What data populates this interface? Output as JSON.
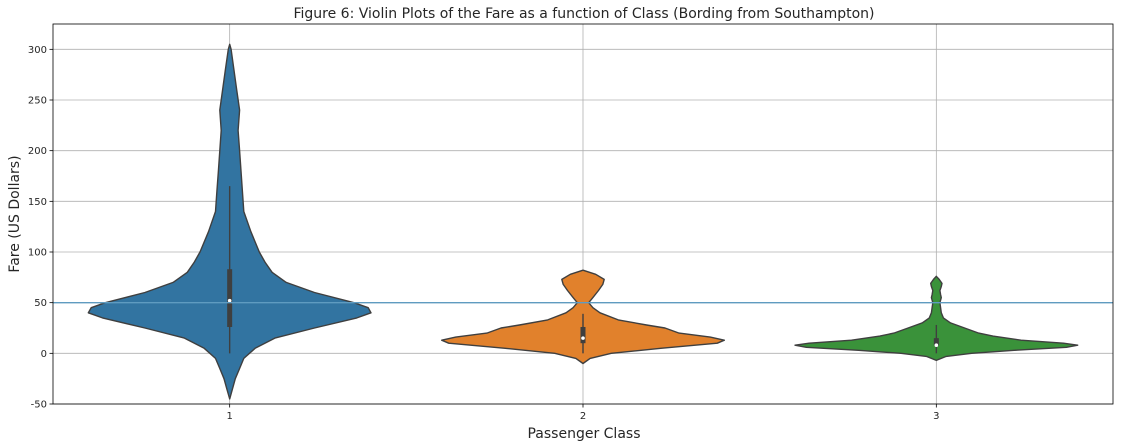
{
  "chart_data": {
    "type": "violin",
    "title": "Figure 6:  Violin Plots of the Fare as a function of Class (Bording from Southampton)",
    "xlabel": "Passenger Class",
    "ylabel": "Fare (US Dollars)",
    "ylim": [
      -50,
      325
    ],
    "yticks": [
      -50,
      0,
      50,
      100,
      150,
      200,
      250,
      300
    ],
    "grid": true,
    "reference_line": {
      "y": 50,
      "color": "#5f9bc0"
    },
    "categories": [
      "1",
      "2",
      "3"
    ],
    "violins": [
      {
        "category": "1",
        "color": "#3274a1",
        "median": 52,
        "q1": 26,
        "q3": 83,
        "whisker_low": 0,
        "whisker_high": 165,
        "profile": [
          [
            -45,
            0.0
          ],
          [
            -35,
            0.02
          ],
          [
            -25,
            0.04
          ],
          [
            -15,
            0.07
          ],
          [
            -5,
            0.1
          ],
          [
            5,
            0.18
          ],
          [
            15,
            0.32
          ],
          [
            25,
            0.6
          ],
          [
            35,
            0.9
          ],
          [
            40,
            1.0
          ],
          [
            45,
            0.98
          ],
          [
            50,
            0.88
          ],
          [
            60,
            0.6
          ],
          [
            70,
            0.4
          ],
          [
            80,
            0.3
          ],
          [
            90,
            0.25
          ],
          [
            100,
            0.21
          ],
          [
            120,
            0.15
          ],
          [
            140,
            0.1
          ],
          [
            160,
            0.09
          ],
          [
            180,
            0.08
          ],
          [
            200,
            0.07
          ],
          [
            220,
            0.06
          ],
          [
            240,
            0.07
          ],
          [
            260,
            0.05
          ],
          [
            280,
            0.03
          ],
          [
            300,
            0.01
          ],
          [
            305,
            0.0
          ]
        ]
      },
      {
        "category": "2",
        "color": "#e1812c",
        "median": 15,
        "q1": 10,
        "q3": 26,
        "whisker_low": 0,
        "whisker_high": 39,
        "profile": [
          [
            -10,
            0.0
          ],
          [
            -5,
            0.05
          ],
          [
            0,
            0.2
          ],
          [
            5,
            0.55
          ],
          [
            10,
            0.95
          ],
          [
            13,
            1.0
          ],
          [
            16,
            0.9
          ],
          [
            20,
            0.68
          ],
          [
            25,
            0.58
          ],
          [
            28,
            0.45
          ],
          [
            33,
            0.25
          ],
          [
            40,
            0.12
          ],
          [
            45,
            0.07
          ],
          [
            50,
            0.04
          ],
          [
            55,
            0.07
          ],
          [
            62,
            0.11
          ],
          [
            68,
            0.14
          ],
          [
            73,
            0.15
          ],
          [
            78,
            0.09
          ],
          [
            82,
            0.0
          ]
        ]
      },
      {
        "category": "3",
        "color": "#3a923a",
        "median": 8,
        "q1": 7.5,
        "q3": 15,
        "whisker_low": 0,
        "whisker_high": 28,
        "profile": [
          [
            -7,
            0.0
          ],
          [
            -3,
            0.07
          ],
          [
            0,
            0.25
          ],
          [
            3,
            0.55
          ],
          [
            6,
            0.92
          ],
          [
            8,
            1.0
          ],
          [
            10,
            0.9
          ],
          [
            13,
            0.6
          ],
          [
            17,
            0.4
          ],
          [
            20,
            0.3
          ],
          [
            25,
            0.2
          ],
          [
            30,
            0.1
          ],
          [
            35,
            0.05
          ],
          [
            40,
            0.035
          ],
          [
            45,
            0.03
          ],
          [
            50,
            0.025
          ],
          [
            55,
            0.035
          ],
          [
            58,
            0.03
          ],
          [
            62,
            0.025
          ],
          [
            66,
            0.035
          ],
          [
            69,
            0.04
          ],
          [
            73,
            0.02
          ],
          [
            76,
            0.0
          ]
        ]
      }
    ]
  }
}
